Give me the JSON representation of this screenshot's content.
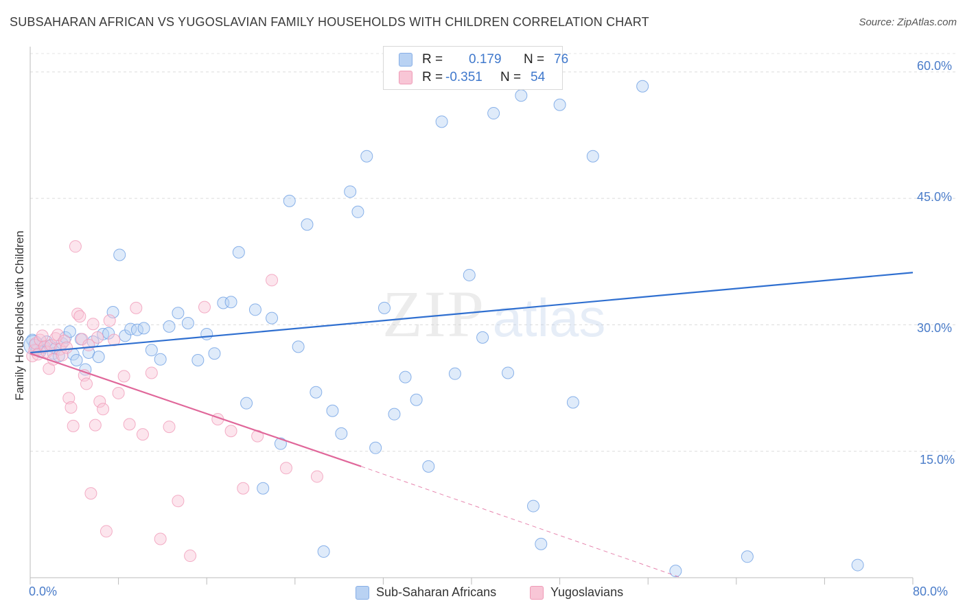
{
  "header": {
    "title": "SUBSAHARAN AFRICAN VS YUGOSLAVIAN FAMILY HOUSEHOLDS WITH CHILDREN CORRELATION CHART",
    "source": "Source: ZipAtlas.com"
  },
  "watermark": {
    "zip": "ZIP",
    "atlas": "atlas"
  },
  "legend": {
    "blue": {
      "r_label": "R =",
      "r_value": "0.179",
      "n_label": "N =",
      "n_value": "76"
    },
    "pink": {
      "r_label": "R =",
      "r_value": "-0.351",
      "n_label": "N =",
      "n_value": "54"
    }
  },
  "colors": {
    "blue": "#6d9fe3",
    "blue_line": "#2f6fd0",
    "pink": "#f09ab8",
    "pink_line": "#e0679a",
    "axis_text": "#4a7cc9"
  },
  "chart_data": {
    "type": "scatter",
    "title": "SUBSAHARAN AFRICAN VS YUGOSLAVIAN FAMILY HOUSEHOLDS WITH CHILDREN CORRELATION CHART",
    "xlabel": "",
    "ylabel": "Family Households with Children",
    "xlim": [
      0,
      80
    ],
    "ylim": [
      0,
      63
    ],
    "x_tick_labels": [
      "0.0%",
      "80.0%"
    ],
    "y_ticks": [
      15,
      30,
      45,
      60
    ],
    "y_tick_labels": [
      "15.0%",
      "30.0%",
      "45.0%",
      "60.0%"
    ],
    "legend_position": "bottom",
    "series": [
      {
        "name": "Sub-Saharan Africans",
        "color": "#6d9fe3",
        "trend": {
          "x": [
            0,
            80
          ],
          "y": [
            26.7,
            36.2
          ]
        },
        "x": [
          0.2,
          0.4,
          0.6,
          0.9,
          1.2,
          1.5,
          1.8,
          2.1,
          2.3,
          2.6,
          2.9,
          3.2,
          3.6,
          3.9,
          4.2,
          4.6,
          5.0,
          5.3,
          5.7,
          6.2,
          6.6,
          7.1,
          7.5,
          8.1,
          8.6,
          9.1,
          9.7,
          10.3,
          11.0,
          11.8,
          12.6,
          13.4,
          14.3,
          15.2,
          16.0,
          16.7,
          17.5,
          18.2,
          18.9,
          19.6,
          20.4,
          21.1,
          21.9,
          22.7,
          23.5,
          24.3,
          25.1,
          25.9,
          26.6,
          27.4,
          28.2,
          29.0,
          29.7,
          30.5,
          31.3,
          32.1,
          33.0,
          34.0,
          35.0,
          36.1,
          37.3,
          38.5,
          39.8,
          41.0,
          42.0,
          43.3,
          44.5,
          45.6,
          46.3,
          48.0,
          49.2,
          51.0,
          55.5,
          58.5,
          65.0,
          75.0
        ],
        "y": [
          28.2,
          27.6,
          27.0,
          26.8,
          27.3,
          28.0,
          27.5,
          26.6,
          27.2,
          26.3,
          27.8,
          28.5,
          29.2,
          26.5,
          25.8,
          28.3,
          24.7,
          26.7,
          28.0,
          26.2,
          28.9,
          29.0,
          31.5,
          38.3,
          28.7,
          29.5,
          29.4,
          29.6,
          27.0,
          25.9,
          29.8,
          31.4,
          30.2,
          25.8,
          28.9,
          26.6,
          32.6,
          32.7,
          38.6,
          20.7,
          31.8,
          10.6,
          30.8,
          15.9,
          44.7,
          27.4,
          41.9,
          22.0,
          3.1,
          19.8,
          17.1,
          45.8,
          43.4,
          50.0,
          15.4,
          32.0,
          19.4,
          23.8,
          21.1,
          13.2,
          54.1,
          24.2,
          35.9,
          28.5,
          55.1,
          24.3,
          57.2,
          8.5,
          4.0,
          56.1,
          20.8,
          50.0,
          58.3,
          0.8,
          2.5,
          1.5
        ]
      },
      {
        "name": "Yugoslavians",
        "color": "#f09ab8",
        "trend": {
          "x": [
            0,
            30
          ],
          "y": [
            26.6,
            13.2
          ]
        },
        "trend_dashed": {
          "x": [
            30,
            59
          ],
          "y": [
            13.2,
            0.0
          ]
        },
        "x": [
          0.2,
          0.4,
          0.5,
          0.7,
          0.9,
          1.1,
          1.3,
          1.5,
          1.7,
          1.9,
          2.1,
          2.3,
          2.5,
          2.7,
          2.9,
          3.1,
          3.3,
          3.5,
          3.7,
          3.9,
          4.1,
          4.3,
          4.5,
          4.7,
          4.9,
          5.1,
          5.3,
          5.5,
          5.7,
          5.9,
          6.1,
          6.3,
          6.6,
          6.9,
          7.2,
          7.6,
          8.0,
          8.5,
          9.0,
          9.6,
          10.2,
          11.0,
          11.8,
          12.6,
          13.4,
          14.5,
          15.8,
          17.0,
          18.2,
          19.3,
          20.6,
          21.9,
          23.2,
          26.0
        ],
        "y": [
          26.3,
          27.0,
          27.8,
          26.5,
          28.2,
          28.7,
          27.4,
          26.8,
          24.8,
          27.6,
          25.9,
          28.4,
          28.8,
          27.1,
          26.4,
          28.1,
          27.3,
          21.3,
          20.2,
          18.0,
          39.3,
          31.3,
          31.0,
          28.3,
          24.0,
          23.0,
          27.6,
          10.0,
          30.1,
          18.1,
          28.5,
          20.9,
          20.0,
          5.5,
          30.5,
          28.2,
          21.9,
          23.9,
          18.2,
          32.0,
          17.0,
          24.3,
          4.6,
          17.9,
          9.1,
          2.6,
          32.1,
          18.8,
          17.4,
          10.6,
          16.8,
          35.3,
          13.0,
          12.0
        ]
      }
    ]
  }
}
